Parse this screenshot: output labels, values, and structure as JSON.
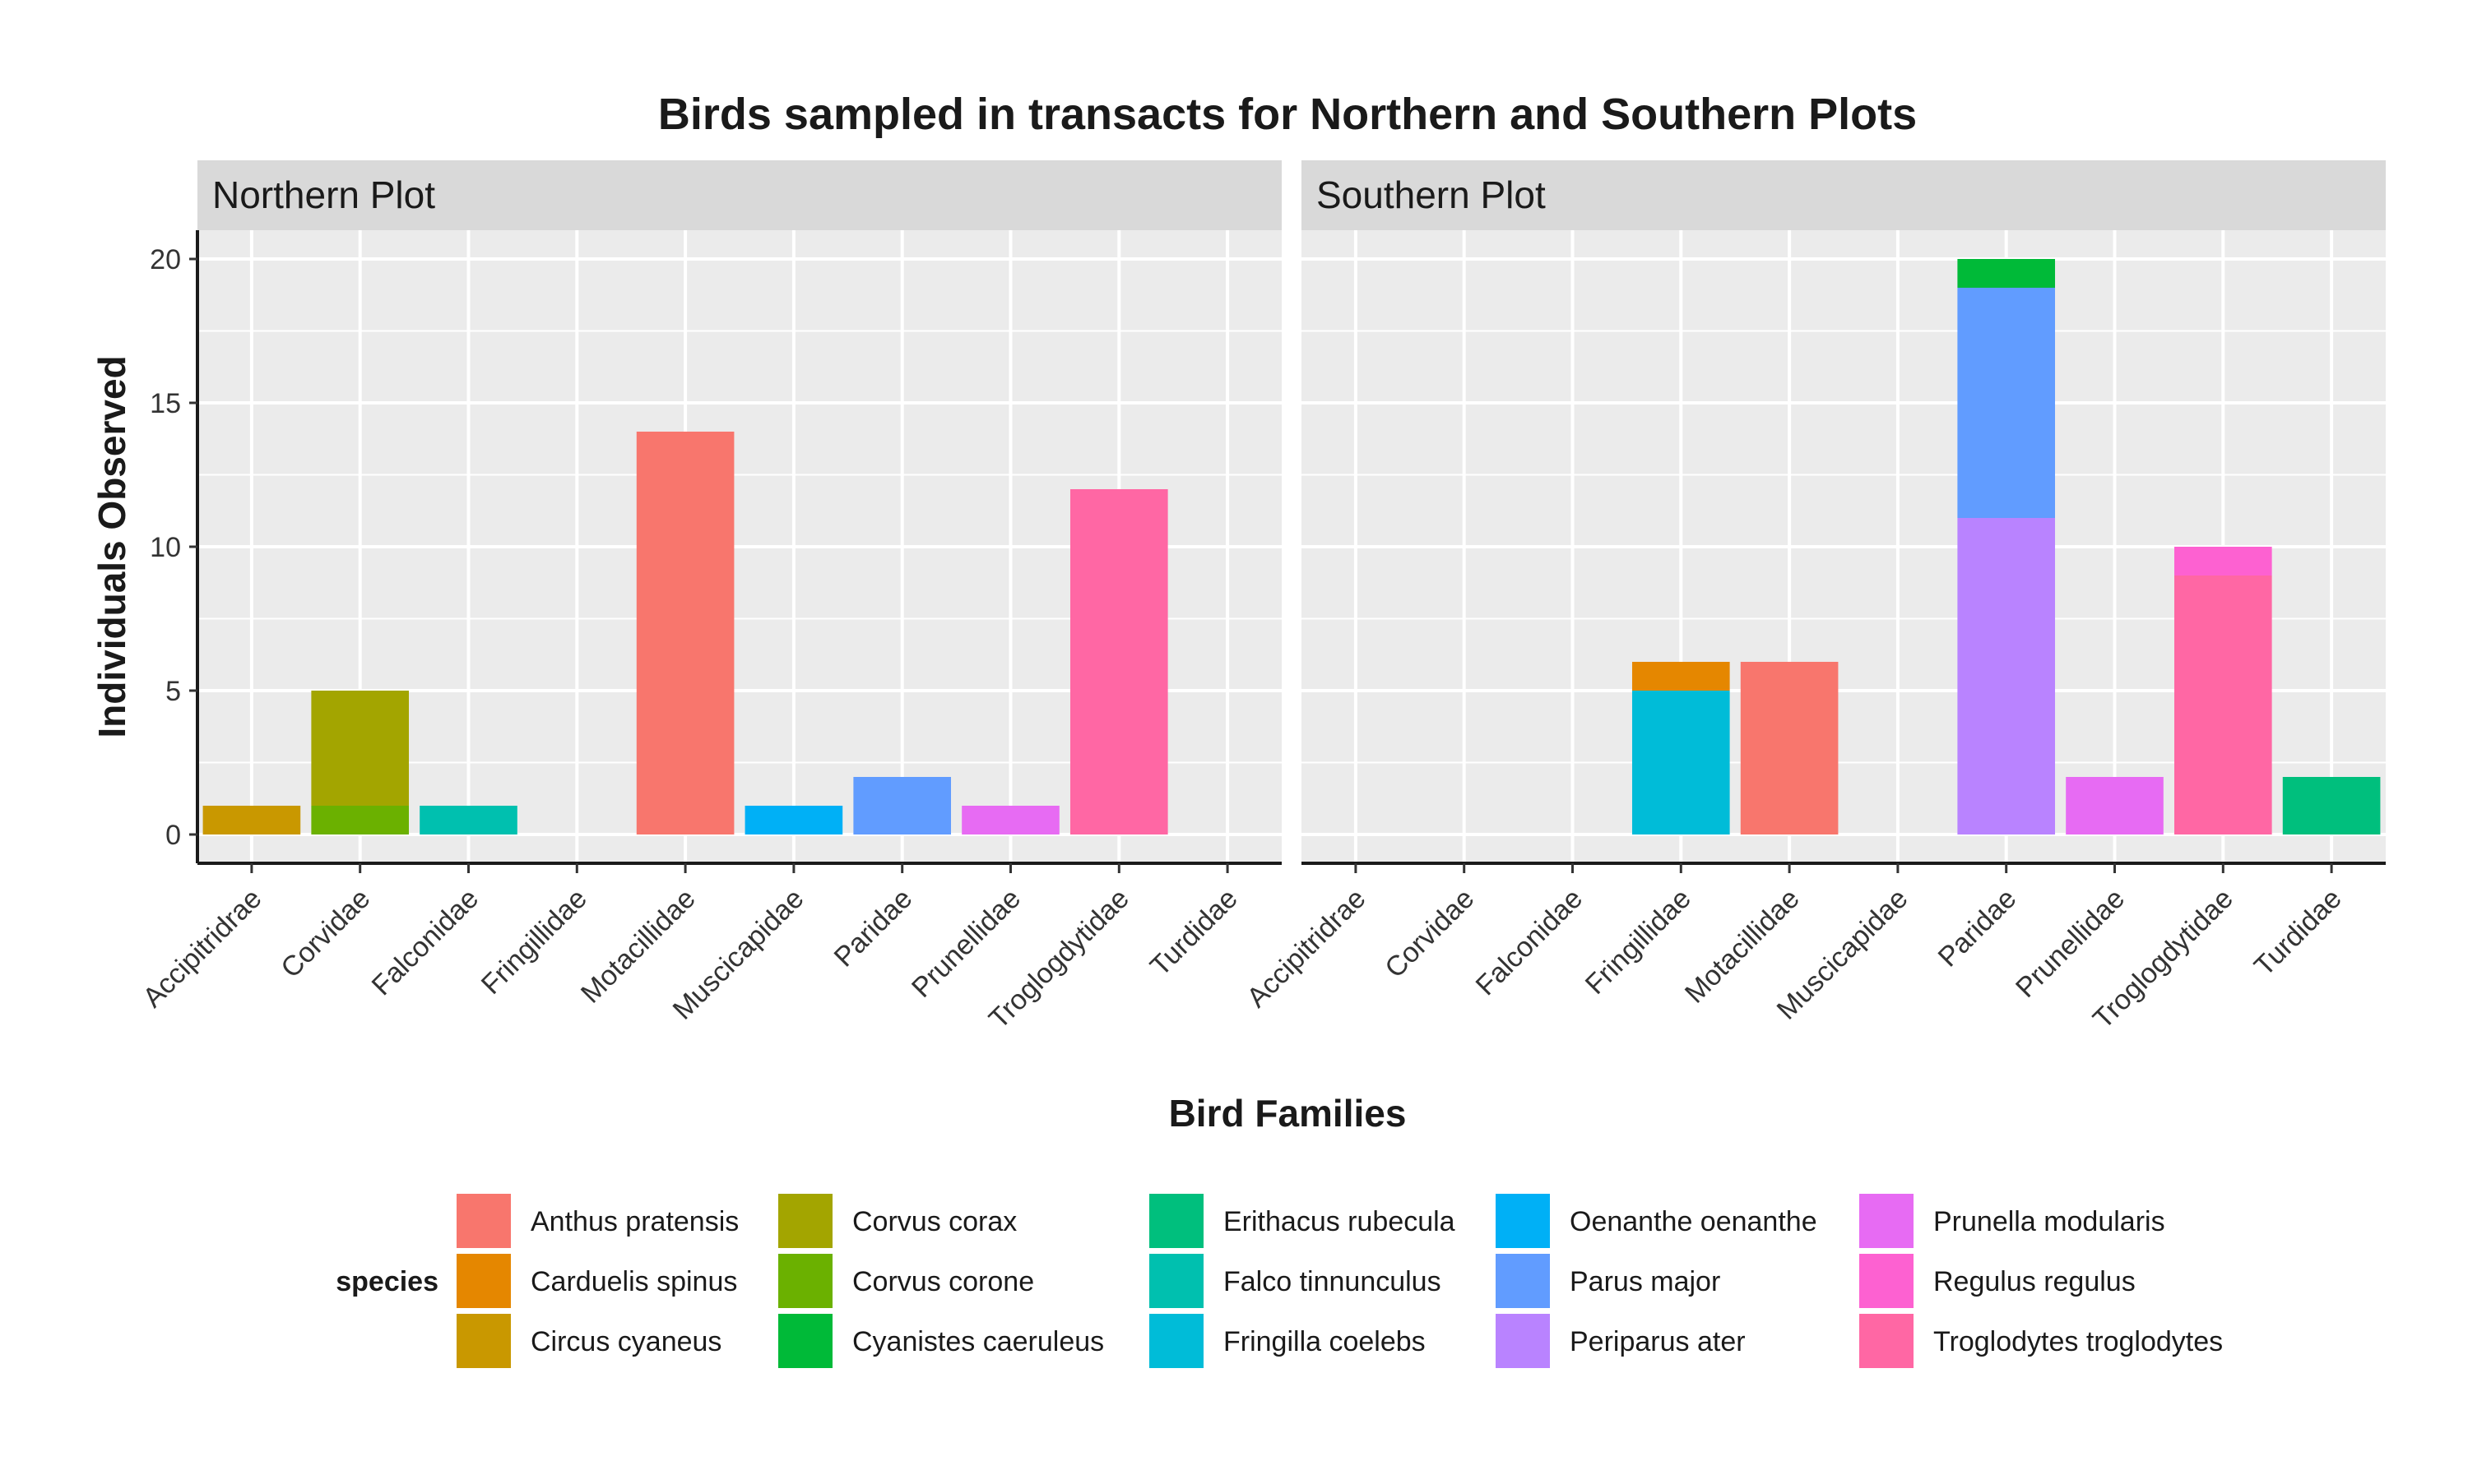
{
  "chart_data": {
    "type": "bar",
    "stacked": true,
    "title": "Birds sampled in transacts for Northern and Southern Plots",
    "xlabel": "Bird Families",
    "ylabel": "Individuals Observed",
    "ylim": [
      -1,
      21
    ],
    "yticks": [
      0,
      5,
      10,
      15,
      20
    ],
    "grid": true,
    "legend_position": "bottom",
    "categories": [
      "Accipitridrae",
      "Corvidae",
      "Falconidae",
      "Fringillidae",
      "Motacillidae",
      "Muscicapidae",
      "Paridae",
      "Prunellidae",
      "Troglogdytidae",
      "Turdidae"
    ],
    "legend": {
      "title": "species",
      "entries": [
        {
          "name": "Anthus pratensis",
          "color": "#F8766D"
        },
        {
          "name": "Carduelis spinus",
          "color": "#E58700"
        },
        {
          "name": "Circus cyaneus",
          "color": "#C99800"
        },
        {
          "name": "Corvus corax",
          "color": "#A3A500"
        },
        {
          "name": "Corvus corone",
          "color": "#6BB100"
        },
        {
          "name": "Cyanistes caeruleus",
          "color": "#00BA38"
        },
        {
          "name": "Erithacus rubecula",
          "color": "#00BF7D"
        },
        {
          "name": "Falco tinnunculus",
          "color": "#00C0AF"
        },
        {
          "name": "Fringilla coelebs",
          "color": "#00BCD8"
        },
        {
          "name": "Oenanthe oenanthe",
          "color": "#00B0F6"
        },
        {
          "name": "Parus major",
          "color": "#619CFF"
        },
        {
          "name": "Periparus ater",
          "color": "#B983FF"
        },
        {
          "name": "Prunella modularis",
          "color": "#E76BF3"
        },
        {
          "name": "Regulus regulus",
          "color": "#FD61D1"
        },
        {
          "name": "Troglodytes troglodytes",
          "color": "#FF67A4"
        }
      ]
    },
    "panels": [
      {
        "name": "Northern Plot",
        "bars": [
          {
            "category": "Accipitridrae",
            "segments": [
              {
                "species": "Circus cyaneus",
                "value": 1
              }
            ]
          },
          {
            "category": "Corvidae",
            "segments": [
              {
                "species": "Corvus corone",
                "value": 1
              },
              {
                "species": "Corvus corax",
                "value": 4
              }
            ]
          },
          {
            "category": "Falconidae",
            "segments": [
              {
                "species": "Falco tinnunculus",
                "value": 1
              }
            ]
          },
          {
            "category": "Motacillidae",
            "segments": [
              {
                "species": "Anthus pratensis",
                "value": 14
              }
            ]
          },
          {
            "category": "Muscicapidae",
            "segments": [
              {
                "species": "Oenanthe oenanthe",
                "value": 1
              }
            ]
          },
          {
            "category": "Paridae",
            "segments": [
              {
                "species": "Parus major",
                "value": 2
              }
            ]
          },
          {
            "category": "Prunellidae",
            "segments": [
              {
                "species": "Prunella modularis",
                "value": 1
              }
            ]
          },
          {
            "category": "Troglogdytidae",
            "segments": [
              {
                "species": "Troglodytes troglodytes",
                "value": 12
              }
            ]
          }
        ]
      },
      {
        "name": "Southern Plot",
        "bars": [
          {
            "category": "Fringillidae",
            "segments": [
              {
                "species": "Fringilla coelebs",
                "value": 5
              },
              {
                "species": "Carduelis spinus",
                "value": 1
              }
            ]
          },
          {
            "category": "Motacillidae",
            "segments": [
              {
                "species": "Anthus pratensis",
                "value": 6
              }
            ]
          },
          {
            "category": "Paridae",
            "segments": [
              {
                "species": "Periparus ater",
                "value": 11
              },
              {
                "species": "Parus major",
                "value": 8
              },
              {
                "species": "Cyanistes caeruleus",
                "value": 1
              }
            ]
          },
          {
            "category": "Prunellidae",
            "segments": [
              {
                "species": "Prunella modularis",
                "value": 2
              }
            ]
          },
          {
            "category": "Troglogdytidae",
            "segments": [
              {
                "species": "Troglodytes troglodytes",
                "value": 9
              },
              {
                "species": "Regulus regulus",
                "value": 1
              }
            ]
          },
          {
            "category": "Turdidae",
            "segments": [
              {
                "species": "Erithacus rubecula",
                "value": 2
              }
            ]
          }
        ]
      }
    ]
  }
}
